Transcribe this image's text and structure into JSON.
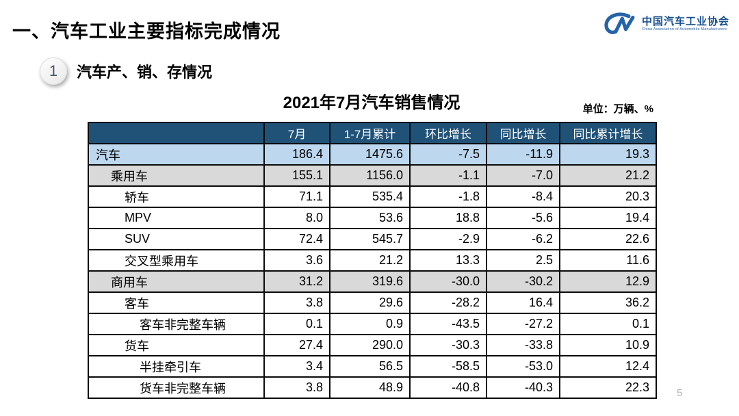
{
  "page": {
    "section_title": "一、汽车工业主要指标完成情况",
    "subsection_number": "1",
    "subsection_title": "汽车产、销、存情况",
    "page_number": "5"
  },
  "logo": {
    "monogram": "CM-swoosh",
    "name_cn": "中国汽车工业协会",
    "name_en": "China Association of Automobile Manufacturers"
  },
  "table": {
    "title": "2021年7月汽车销售情况",
    "unit_note": "单位：万辆、%",
    "columns": [
      "",
      "7月",
      "1-7月累计",
      "环比增长",
      "同比增长",
      "同比累计增长"
    ],
    "rows": [
      {
        "label": "汽车",
        "indent": 0,
        "bg": "blue",
        "values": [
          "186.4",
          "1475.6",
          "-7.5",
          "-11.9",
          "19.3"
        ]
      },
      {
        "label": "乘用车",
        "indent": 1,
        "bg": "gray",
        "values": [
          "155.1",
          "1156.0",
          "-1.1",
          "-7.0",
          "21.2"
        ]
      },
      {
        "label": "轿车",
        "indent": 2,
        "bg": "white",
        "values": [
          "71.1",
          "535.4",
          "-1.8",
          "-8.4",
          "20.3"
        ]
      },
      {
        "label": "MPV",
        "indent": 2,
        "bg": "white",
        "values": [
          "8.0",
          "53.6",
          "18.8",
          "-5.6",
          "19.4"
        ]
      },
      {
        "label": "SUV",
        "indent": 2,
        "bg": "white",
        "values": [
          "72.4",
          "545.7",
          "-2.9",
          "-6.2",
          "22.6"
        ]
      },
      {
        "label": "交叉型乘用车",
        "indent": 2,
        "bg": "white",
        "values": [
          "3.6",
          "21.2",
          "13.3",
          "2.5",
          "11.6"
        ]
      },
      {
        "label": "商用车",
        "indent": 1,
        "bg": "gray",
        "values": [
          "31.2",
          "319.6",
          "-30.0",
          "-30.2",
          "12.9"
        ]
      },
      {
        "label": "客车",
        "indent": 2,
        "bg": "white",
        "values": [
          "3.8",
          "29.6",
          "-28.2",
          "16.4",
          "36.2"
        ]
      },
      {
        "label": "客车非完整车辆",
        "indent": 3,
        "bg": "white",
        "values": [
          "0.1",
          "0.9",
          "-43.5",
          "-27.2",
          "0.1"
        ]
      },
      {
        "label": "货车",
        "indent": 2,
        "bg": "white",
        "values": [
          "27.4",
          "290.0",
          "-30.3",
          "-33.8",
          "10.9"
        ]
      },
      {
        "label": "半挂牵引车",
        "indent": 3,
        "bg": "white",
        "values": [
          "3.4",
          "56.5",
          "-58.5",
          "-53.0",
          "12.4"
        ]
      },
      {
        "label": "货车非完整车辆",
        "indent": 3,
        "bg": "white",
        "values": [
          "3.8",
          "48.9",
          "-40.8",
          "-40.3",
          "22.3"
        ]
      }
    ]
  },
  "colors": {
    "header_bg": "#205278",
    "row_highlight_blue": "#bdd7ee",
    "row_highlight_gray": "#d9d9d9",
    "border": "#0a0a0a",
    "logo_blue": "#2563a8",
    "logo_text_blue": "#17508f",
    "page_number_gray": "#b3b3b3"
  }
}
